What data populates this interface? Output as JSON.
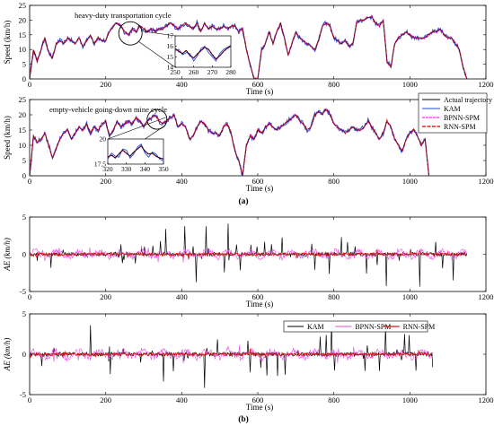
{
  "figure": {
    "panel_a_label": "(a)",
    "panel_b_label": "(b)"
  },
  "colors": {
    "actual": "#000000",
    "kam": "#1f4fd6",
    "bpnn": "#e000e0",
    "rnn": "#e02020",
    "ae_kam": "#000000",
    "ae_bpnn": "#e64de6",
    "ae_rnn": "#e01010"
  },
  "chart_data": [
    {
      "id": "speed_top",
      "type": "line",
      "annotation": "heavy-duty transportation cycle",
      "xlabel": "Time (s)",
      "ylabel": "Speed (km/h)",
      "xlim": [
        0,
        1200
      ],
      "ylim": [
        0,
        25
      ],
      "xticks": [
        0,
        200,
        400,
        600,
        800,
        1000,
        1200
      ],
      "yticks": [
        0,
        5,
        10,
        15,
        20,
        25
      ],
      "series_names": [
        "Actual trajectory",
        "KAM",
        "BPNN-SPM",
        "RNN-SPM"
      ],
      "x": [
        0,
        10,
        20,
        30,
        40,
        50,
        60,
        70,
        80,
        90,
        100,
        110,
        120,
        130,
        140,
        150,
        160,
        170,
        180,
        190,
        200,
        210,
        220,
        230,
        240,
        250,
        260,
        270,
        280,
        290,
        300,
        310,
        320,
        330,
        340,
        350,
        360,
        370,
        380,
        390,
        400,
        410,
        420,
        430,
        440,
        450,
        460,
        470,
        480,
        490,
        500,
        510,
        520,
        530,
        540,
        550,
        560,
        570,
        580,
        590,
        600,
        610,
        620,
        630,
        640,
        650,
        660,
        670,
        680,
        690,
        700,
        710,
        720,
        730,
        740,
        750,
        760,
        770,
        780,
        790,
        800,
        810,
        820,
        830,
        840,
        850,
        860,
        870,
        880,
        890,
        900,
        910,
        920,
        930,
        940,
        950,
        960,
        970,
        980,
        990,
        1000,
        1010,
        1020,
        1030,
        1040,
        1050,
        1060,
        1070,
        1080,
        1090,
        1100,
        1110,
        1120,
        1130,
        1140,
        1150
      ],
      "y": [
        0,
        10,
        6,
        10,
        14,
        9,
        7,
        12,
        13,
        12,
        14,
        13,
        12,
        14,
        11,
        13,
        15,
        12,
        14,
        13,
        13,
        16,
        18,
        19,
        18,
        16,
        15,
        17,
        16,
        18,
        17,
        16,
        17,
        16,
        17,
        17,
        18,
        19,
        18,
        17,
        18,
        19,
        18,
        17,
        19,
        16,
        19,
        17,
        18,
        17,
        17,
        18,
        17,
        18,
        18,
        16,
        17,
        10,
        5,
        0,
        0,
        10,
        12,
        16,
        12,
        16,
        19,
        14,
        8,
        12,
        16,
        14,
        13,
        12,
        11,
        10,
        13,
        18,
        19,
        18,
        14,
        13,
        12,
        13,
        11,
        12,
        19,
        20,
        20,
        21,
        21,
        19,
        18,
        20,
        6,
        4,
        12,
        14,
        15,
        16,
        15,
        14,
        14,
        14,
        14,
        15,
        16,
        16,
        17,
        15,
        14,
        14,
        12,
        10,
        4,
        0
      ],
      "inset": {
        "xlim": [
          250,
          280
        ],
        "ylim": [
          14,
          17
        ],
        "xticks": [
          250,
          260,
          270,
          280
        ],
        "yticks": [
          14,
          15,
          16,
          17
        ],
        "x": [
          250,
          252,
          254,
          256,
          258,
          260,
          262,
          264,
          266,
          268,
          270,
          272,
          274,
          276,
          278,
          280
        ],
        "actual": [
          15.8,
          15.5,
          15.3,
          15.6,
          15.1,
          14.9,
          15.3,
          15.6,
          15.9,
          15.7,
          15.2,
          14.8,
          15.1,
          15.5,
          15.8,
          16.0
        ],
        "kam": [
          15.6,
          15.7,
          15.2,
          15.4,
          15.3,
          14.6,
          15.1,
          15.8,
          16.0,
          15.4,
          15.0,
          14.6,
          15.3,
          15.7,
          15.9,
          16.1
        ]
      }
    },
    {
      "id": "speed_bottom",
      "type": "line",
      "annotation": "empty-vehicle going-down mine cycle",
      "xlabel": "Time (s)",
      "ylabel": "Speed (km/h)",
      "xlim": [
        0,
        1200
      ],
      "ylim": [
        0,
        25
      ],
      "xticks": [
        0,
        200,
        400,
        600,
        800,
        1000,
        1200
      ],
      "yticks": [
        0,
        5,
        10,
        15,
        20,
        25
      ],
      "legend": {
        "position": "top-right",
        "entries": [
          "Actual trajectory",
          "KAM",
          "BPNN-SPM",
          "RNN-SPM"
        ]
      },
      "x": [
        0,
        10,
        20,
        30,
        40,
        50,
        60,
        70,
        80,
        90,
        100,
        110,
        120,
        130,
        140,
        150,
        160,
        170,
        180,
        190,
        200,
        210,
        220,
        230,
        240,
        250,
        260,
        270,
        280,
        290,
        300,
        310,
        320,
        330,
        340,
        350,
        360,
        370,
        380,
        390,
        400,
        410,
        420,
        430,
        440,
        450,
        460,
        470,
        480,
        490,
        500,
        510,
        520,
        530,
        540,
        550,
        560,
        570,
        580,
        590,
        600,
        610,
        620,
        630,
        640,
        650,
        660,
        670,
        680,
        690,
        700,
        710,
        720,
        730,
        740,
        750,
        760,
        770,
        780,
        790,
        800,
        810,
        820,
        830,
        840,
        850,
        860,
        870,
        880,
        890,
        900,
        910,
        920,
        930,
        940,
        950,
        960,
        970,
        980,
        990,
        1000,
        1010,
        1020,
        1030,
        1040,
        1050
      ],
      "y": [
        0,
        13,
        11,
        12,
        14,
        10,
        6,
        9,
        12,
        14,
        15,
        12,
        14,
        16,
        15,
        17,
        14,
        16,
        15,
        17,
        18,
        13,
        15,
        18,
        16,
        17,
        18,
        17,
        19,
        18,
        16,
        18,
        19,
        20,
        18,
        17,
        18,
        19,
        20,
        16,
        17,
        16,
        12,
        13,
        16,
        18,
        17,
        15,
        14,
        14,
        13,
        16,
        17,
        14,
        8,
        5,
        0,
        10,
        13,
        12,
        15,
        14,
        16,
        17,
        16,
        15,
        16,
        17,
        18,
        19,
        20,
        18,
        17,
        15,
        16,
        20,
        21,
        20,
        22,
        20,
        17,
        16,
        15,
        14,
        15,
        16,
        15,
        15,
        16,
        18,
        16,
        14,
        12,
        14,
        18,
        16,
        12,
        10,
        8,
        12,
        14,
        15,
        13,
        10,
        12,
        0
      ],
      "inset": {
        "xlim": [
          320,
          350
        ],
        "ylim": [
          17.5,
          20
        ],
        "xticks": [
          320,
          330,
          340,
          350
        ],
        "yticks": [
          17.5,
          20
        ],
        "x": [
          320,
          322,
          324,
          326,
          328,
          330,
          332,
          334,
          336,
          338,
          340,
          342,
          344,
          346,
          348,
          350
        ],
        "actual": [
          18.2,
          18.4,
          18.1,
          18.5,
          18.9,
          18.6,
          18.3,
          18.7,
          19.0,
          19.3,
          18.8,
          18.5,
          18.6,
          18.3,
          18.1,
          18.0
        ],
        "kam": [
          18.0,
          18.6,
          18.3,
          18.2,
          19.0,
          18.9,
          18.1,
          18.5,
          19.2,
          19.5,
          18.6,
          18.2,
          18.7,
          18.5,
          18.0,
          17.8
        ]
      }
    },
    {
      "id": "ae_top",
      "type": "line",
      "xlabel": "Time (s)",
      "ylabel": "AE (km/h)",
      "xlim": [
        0,
        1200
      ],
      "ylim": [
        -5,
        5
      ],
      "xticks": [
        0,
        200,
        400,
        600,
        800,
        1000,
        1200
      ],
      "yticks": [
        -5,
        0,
        5
      ],
      "series_names": [
        "KAM",
        "BPNN-SPM",
        "RNN-SPM"
      ]
    },
    {
      "id": "ae_bottom",
      "type": "line",
      "xlabel": "Time (s)",
      "ylabel": "AE (km/h)",
      "xlim": [
        0,
        1200
      ],
      "ylim": [
        -5,
        5
      ],
      "xticks": [
        0,
        200,
        400,
        600,
        800,
        1000,
        1200
      ],
      "yticks": [
        -5,
        0,
        5
      ],
      "legend": {
        "position": "top-right",
        "entries": [
          "KAM",
          "BPNN-SPM",
          "RNN-SPM"
        ]
      }
    }
  ]
}
